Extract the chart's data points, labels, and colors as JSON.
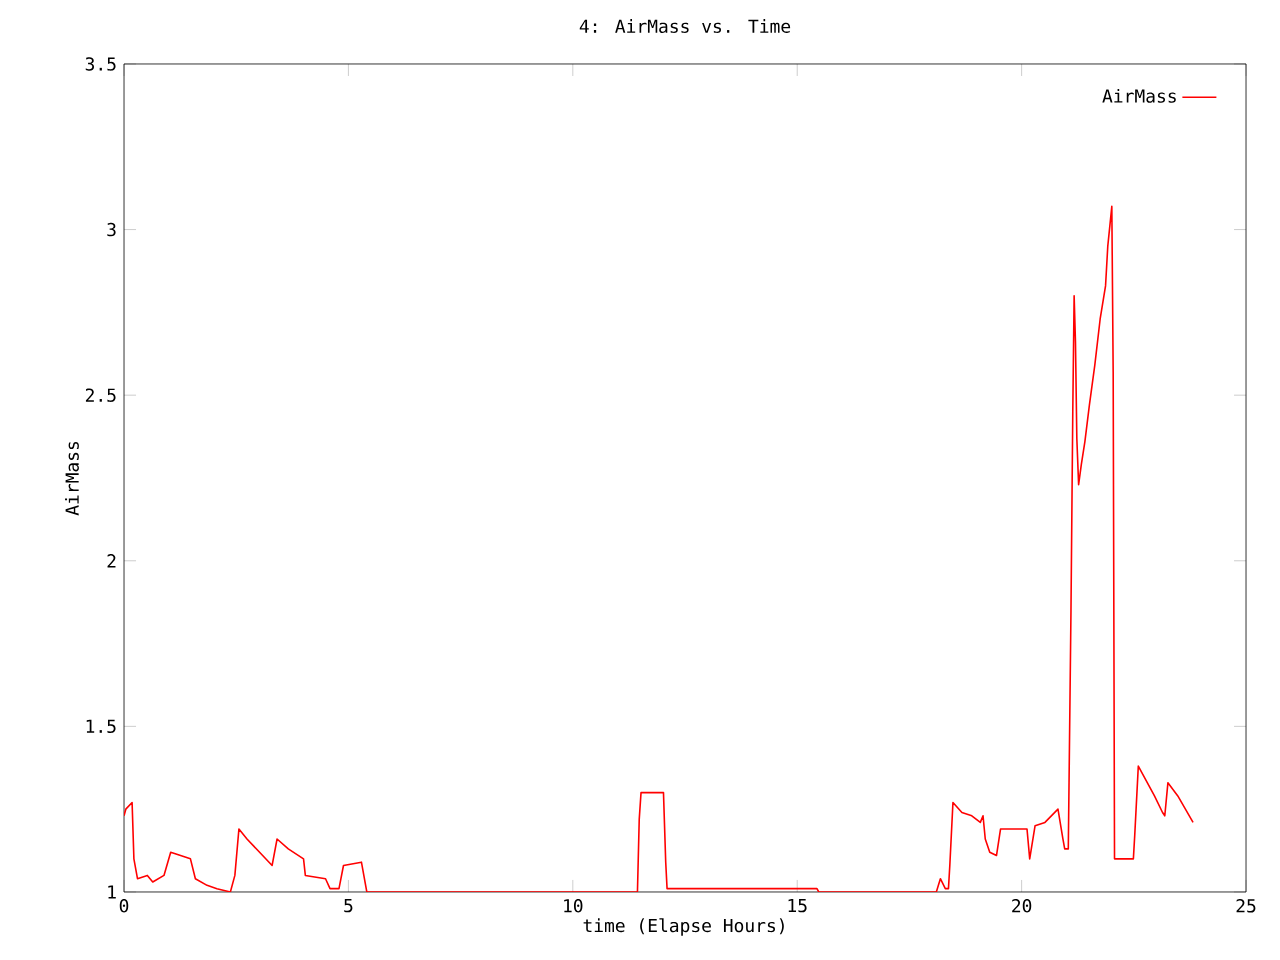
{
  "chart_data": {
    "type": "line",
    "title": "4: AirMass vs. Time",
    "xlabel": "time (Elapse Hours)",
    "ylabel": "AirMass",
    "xlim": [
      0,
      25
    ],
    "ylim": [
      1,
      3.5
    ],
    "xticks": [
      0,
      5,
      10,
      15,
      20,
      25
    ],
    "yticks": [
      1,
      1.5,
      2,
      2.5,
      3,
      3.5
    ],
    "legend": "top right",
    "series": [
      {
        "name": "AirMass",
        "color": "#ff0000",
        "x": [
          0,
          0.04,
          0.18,
          0.22,
          0.3,
          0.52,
          0.64,
          0.89,
          1.04,
          1.26,
          1.48,
          1.59,
          1.85,
          2.07,
          2.37,
          2.47,
          2.56,
          2.74,
          3.3,
          3.41,
          3.66,
          4.0,
          4.04,
          4.49,
          4.59,
          4.79,
          4.89,
          5.29,
          5.41,
          11.44,
          11.48,
          11.52,
          12.02,
          12.07,
          12.1,
          15.44,
          15.48,
          18.1,
          18.19,
          18.3,
          18.37,
          18.4,
          18.47,
          18.67,
          18.89,
          19.08,
          19.14,
          19.19,
          19.29,
          19.44,
          19.53,
          20.12,
          20.18,
          20.3,
          20.52,
          20.81,
          20.92,
          20.96,
          21.04,
          21.1,
          21.14,
          21.17,
          21.2,
          21.23,
          21.27,
          21.33,
          21.41,
          21.51,
          21.63,
          21.75,
          21.87,
          21.92,
          21.98,
          22.01,
          22.04,
          22.07,
          22.49,
          22.52,
          22.6,
          22.96,
          23.14,
          23.19,
          23.26,
          23.48,
          23.82
        ],
        "values": [
          1.23,
          1.25,
          1.27,
          1.1,
          1.04,
          1.05,
          1.03,
          1.05,
          1.12,
          1.11,
          1.1,
          1.04,
          1.02,
          1.01,
          1.0,
          1.05,
          1.19,
          1.16,
          1.08,
          1.16,
          1.13,
          1.1,
          1.05,
          1.04,
          1.01,
          1.01,
          1.08,
          1.09,
          1.0,
          1.0,
          1.22,
          1.3,
          1.3,
          1.09,
          1.01,
          1.01,
          1.0,
          1.0,
          1.04,
          1.01,
          1.01,
          1.08,
          1.27,
          1.24,
          1.23,
          1.21,
          1.23,
          1.16,
          1.12,
          1.11,
          1.19,
          1.19,
          1.1,
          1.2,
          1.21,
          1.25,
          1.16,
          1.13,
          1.13,
          1.85,
          2.45,
          2.8,
          2.66,
          2.37,
          2.23,
          2.29,
          2.36,
          2.47,
          2.59,
          2.73,
          2.83,
          2.95,
          3.03,
          3.07,
          2.57,
          1.1,
          1.1,
          1.17,
          1.38,
          1.29,
          1.24,
          1.23,
          1.33,
          1.29,
          1.21
        ]
      }
    ]
  }
}
